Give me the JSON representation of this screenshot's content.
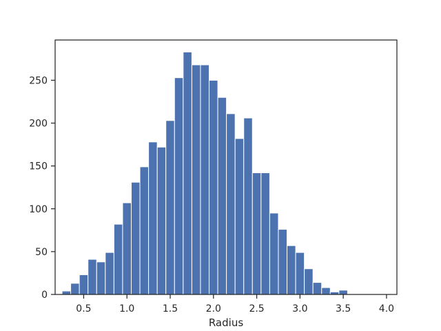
{
  "chart_data": {
    "type": "histogram",
    "title": "",
    "xlabel": "Radius",
    "ylabel": "",
    "xlim": [
      0.17,
      4.12
    ],
    "ylim": [
      0,
      297
    ],
    "grid": false,
    "legend": "none",
    "bar_color": "#4c72b0",
    "bar_edge_color": "#ffffff",
    "axis_color": "#262626",
    "x_ticks": [
      0.5,
      1.0,
      1.5,
      2.0,
      2.5,
      3.0,
      3.5,
      4.0
    ],
    "x_tick_labels": [
      "0.5",
      "1.0",
      "1.5",
      "2.0",
      "2.5",
      "3.0",
      "3.5",
      "4.0"
    ],
    "y_ticks": [
      0,
      50,
      100,
      150,
      200,
      250
    ],
    "y_tick_labels": [
      "0",
      "50",
      "100",
      "150",
      "200",
      "250"
    ],
    "bin_edges": [
      0.25,
      0.35,
      0.45,
      0.55,
      0.65,
      0.75,
      0.85,
      0.95,
      1.05,
      1.15,
      1.25,
      1.35,
      1.45,
      1.55,
      1.65,
      1.75,
      1.85,
      1.95,
      2.05,
      2.15,
      2.25,
      2.35,
      2.45,
      2.55,
      2.65,
      2.75,
      2.85,
      2.95,
      3.05,
      3.15,
      3.25,
      3.35,
      3.45,
      3.55,
      3.65,
      3.75,
      3.85,
      3.95,
      4.05
    ],
    "counts": [
      4,
      13,
      23,
      41,
      38,
      49,
      82,
      107,
      131,
      149,
      178,
      172,
      203,
      253,
      283,
      268,
      268,
      250,
      230,
      211,
      182,
      206,
      142,
      142,
      95,
      76,
      57,
      49,
      30,
      14,
      8,
      3,
      5,
      0,
      0,
      0,
      0,
      0
    ]
  }
}
